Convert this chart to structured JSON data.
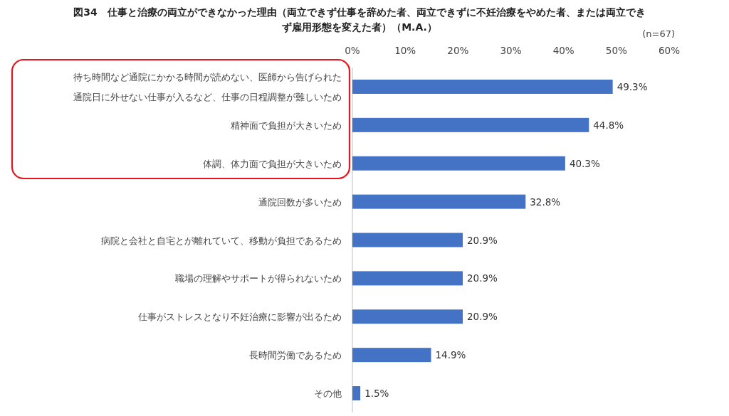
{
  "chart_data": {
    "type": "bar",
    "orientation": "horizontal",
    "title": "図34　仕事と治療の両立ができなかった理由（両立できず仕事を辞めた者、両立できずに不妊治療をやめた者、または両立できず雇用形態を変えた者）（M.A.）",
    "annotations": [
      "(n=67)"
    ],
    "categories": [
      "待ち時間など通院にかかる時間が読めない、医師から告げられた通院日に外せない仕事が入るなど、仕事の日程調整が難しいため",
      "精神面で負担が大きいため",
      "体調、体力面で負担が大きいため",
      "通院回数が多いため",
      "病院と会社と自宅とが離れていて、移動が負担であるため",
      "職場の理解やサポートが得られないため",
      "仕事がストレスとなり不妊治療に影響が出るため",
      "長時間労働であるため",
      "その他"
    ],
    "values": [
      49.3,
      44.8,
      40.3,
      32.8,
      20.9,
      20.9,
      20.9,
      14.9,
      1.5
    ],
    "value_labels": [
      "49.3%",
      "44.8%",
      "40.3%",
      "32.8%",
      "20.9%",
      "20.9%",
      "20.9%",
      "14.9%",
      "1.5%"
    ],
    "color": "#4472c4",
    "xlim": [
      0,
      60
    ],
    "xticks": [
      {
        "value": 0,
        "label": "0%"
      },
      {
        "value": 10,
        "label": "10%"
      },
      {
        "value": 20,
        "label": "20%"
      },
      {
        "value": 30,
        "label": "30%"
      },
      {
        "value": 40,
        "label": "40%"
      },
      {
        "value": 50,
        "label": "50%"
      },
      {
        "value": 60,
        "label": "60%"
      }
    ],
    "grid": false
  }
}
